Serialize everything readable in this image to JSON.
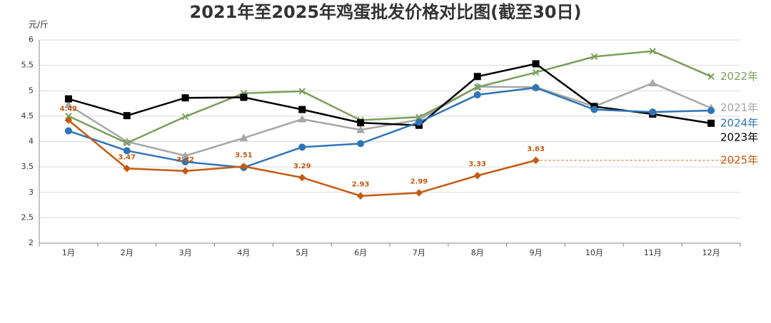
{
  "chart_data": {
    "type": "line",
    "title": "2021年至2025年鸡蛋批发价格对比图(截至30日)",
    "y_label": "元/斤",
    "categories": [
      "1月",
      "2月",
      "3月",
      "4月",
      "5月",
      "6月",
      "7月",
      "8月",
      "9月",
      "10月",
      "11月",
      "12月"
    ],
    "ylim": [
      2,
      6
    ],
    "yticks": [
      2,
      2.5,
      3,
      3.5,
      4,
      4.5,
      5,
      5.5,
      6
    ],
    "grid": true,
    "series": [
      {
        "name": "2021年",
        "color": "#a6a6a6",
        "marker": "triangle",
        "values": [
          4.72,
          4.0,
          3.72,
          4.07,
          4.44,
          4.23,
          4.43,
          5.08,
          5.07,
          4.69,
          5.15,
          4.66
        ]
      },
      {
        "name": "2022年",
        "color": "#7a9f5a",
        "marker": "x",
        "values": [
          4.5,
          3.97,
          4.49,
          4.95,
          4.99,
          4.42,
          4.48,
          5.07,
          5.36,
          5.67,
          5.78,
          5.28
        ]
      },
      {
        "name": "2023年",
        "color": "#000000",
        "marker": "square",
        "values": [
          4.84,
          4.51,
          4.86,
          4.87,
          4.63,
          4.37,
          4.32,
          5.28,
          5.53,
          4.69,
          4.54,
          4.36
        ]
      },
      {
        "name": "2024年",
        "color": "#2e75b6",
        "marker": "circle",
        "values": [
          4.21,
          3.82,
          3.6,
          3.49,
          3.89,
          3.96,
          4.38,
          4.92,
          5.06,
          4.63,
          4.58,
          4.61
        ]
      },
      {
        "name": "2025年",
        "color": "#c55a11",
        "marker": "diamond",
        "show_values": true,
        "values": [
          4.42,
          3.47,
          3.42,
          3.51,
          3.29,
          2.93,
          2.99,
          3.33,
          3.63,
          null,
          null,
          null
        ]
      }
    ]
  }
}
